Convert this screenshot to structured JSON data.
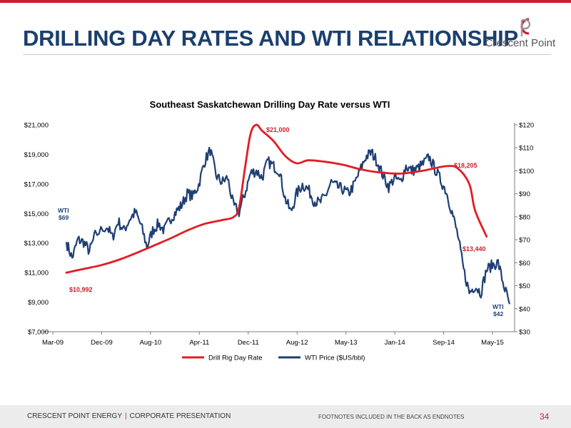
{
  "slide": {
    "title": "DRILLING DAY RATES AND WTI RELATIONSHIP",
    "logo_text": "Crescent Point",
    "brand_color": "#cc1f2f",
    "title_color": "#1b3f6e"
  },
  "footer": {
    "company": "CRESCENT POINT ENERGY",
    "separator": "|",
    "presentation": "CORPORATE PRESENTATION",
    "footnote": "FOOTNOTES INCLUDED IN THE BACK AS ENDNOTES",
    "page_number": "34"
  },
  "chart_data": {
    "type": "line",
    "title": "Southeast Saskatchewan Drilling Day Rate versus WTI",
    "x_ticks": [
      "Mar-09",
      "Dec-09",
      "Aug-10",
      "Apr-11",
      "Dec-11",
      "Aug-12",
      "May-13",
      "Jan-14",
      "Sep-14",
      "May-15"
    ],
    "y_left": {
      "min": 7000,
      "max": 21000,
      "ticks": [
        "$7,000",
        "$9,000",
        "$11,000",
        "$13,000",
        "$15,000",
        "$17,000",
        "$19,000",
        "$21,000"
      ]
    },
    "y_right": {
      "min": 30,
      "max": 120,
      "ticks": [
        "$30",
        "$40",
        "$50",
        "$60",
        "$70",
        "$80",
        "$90",
        "$100",
        "$110",
        "$120"
      ]
    },
    "legend_position": "bottom",
    "grid": false,
    "series": [
      {
        "name": "Drill Rig Day Rate",
        "color": "#e31b23",
        "axis": "left",
        "points": [
          [
            "2009-03",
            10992
          ],
          [
            "2009-06",
            11250
          ],
          [
            "2009-09",
            11500
          ],
          [
            "2009-12",
            11850
          ],
          [
            "2010-03",
            12300
          ],
          [
            "2010-06",
            12800
          ],
          [
            "2010-09",
            13300
          ],
          [
            "2010-12",
            13850
          ],
          [
            "2011-03",
            14300
          ],
          [
            "2011-06",
            14550
          ],
          [
            "2011-08",
            14750
          ],
          [
            "2011-09",
            15400
          ],
          [
            "2011-10",
            18000
          ],
          [
            "2011-11",
            20400
          ],
          [
            "2011-12",
            21000
          ],
          [
            "2012-01",
            20600
          ],
          [
            "2012-03",
            19900
          ],
          [
            "2012-05",
            18900
          ],
          [
            "2012-07",
            18400
          ],
          [
            "2012-09",
            18600
          ],
          [
            "2012-12",
            18500
          ],
          [
            "2013-03",
            18300
          ],
          [
            "2013-06",
            18000
          ],
          [
            "2013-09",
            17800
          ],
          [
            "2014-01",
            17700
          ],
          [
            "2014-05",
            17900
          ],
          [
            "2014-09",
            18205
          ],
          [
            "2014-11",
            18050
          ],
          [
            "2015-01",
            17000
          ],
          [
            "2015-02",
            15200
          ],
          [
            "2015-04",
            13440
          ]
        ]
      },
      {
        "name": "WTI Price ($US/bbl)",
        "color": "#1f3f73",
        "axis": "right",
        "points": [
          [
            "2009-03",
            69
          ],
          [
            "2009-04",
            62
          ],
          [
            "2009-05",
            70
          ],
          [
            "2009-06",
            69
          ],
          [
            "2009-07",
            65
          ],
          [
            "2009-08",
            72
          ],
          [
            "2009-10",
            76
          ],
          [
            "2009-11",
            71
          ],
          [
            "2009-12",
            78
          ],
          [
            "2010-01",
            74
          ],
          [
            "2010-02",
            79
          ],
          [
            "2010-03",
            82
          ],
          [
            "2010-04",
            76
          ],
          [
            "2010-05",
            67
          ],
          [
            "2010-06",
            74
          ],
          [
            "2010-07",
            77
          ],
          [
            "2010-08",
            74
          ],
          [
            "2010-09",
            79
          ],
          [
            "2010-10",
            82
          ],
          [
            "2010-11",
            85
          ],
          [
            "2010-12",
            90
          ],
          [
            "2011-01",
            89
          ],
          [
            "2011-02",
            94
          ],
          [
            "2011-03",
            104
          ],
          [
            "2011-04",
            109
          ],
          [
            "2011-05",
            98
          ],
          [
            "2011-06",
            95
          ],
          [
            "2011-07",
            97
          ],
          [
            "2011-08",
            85
          ],
          [
            "2011-09",
            82
          ],
          [
            "2011-10",
            90
          ],
          [
            "2011-11",
            99
          ],
          [
            "2011-12",
            100
          ],
          [
            "2012-01",
            97
          ],
          [
            "2012-02",
            104
          ],
          [
            "2012-03",
            102
          ],
          [
            "2012-04",
            100
          ],
          [
            "2012-05",
            88
          ],
          [
            "2012-06",
            82
          ],
          [
            "2012-07",
            90
          ],
          [
            "2012-08",
            94
          ],
          [
            "2012-09",
            92
          ],
          [
            "2012-10",
            87
          ],
          [
            "2012-11",
            86
          ],
          [
            "2012-12",
            89
          ],
          [
            "2013-01",
            95
          ],
          [
            "2013-02",
            93
          ],
          [
            "2013-03",
            92
          ],
          [
            "2013-04",
            90
          ],
          [
            "2013-05",
            94
          ],
          [
            "2013-06",
            100
          ],
          [
            "2013-07",
            106
          ],
          [
            "2013-08",
            108
          ],
          [
            "2013-09",
            104
          ],
          [
            "2013-10",
            98
          ],
          [
            "2013-11",
            93
          ],
          [
            "2013-12",
            97
          ],
          [
            "2014-01",
            95
          ],
          [
            "2014-02",
            102
          ],
          [
            "2014-03",
            100
          ],
          [
            "2014-04",
            101
          ],
          [
            "2014-05",
            103
          ],
          [
            "2014-06",
            106
          ],
          [
            "2014-07",
            101
          ],
          [
            "2014-08",
            96
          ],
          [
            "2014-09",
            91
          ],
          [
            "2014-10",
            82
          ],
          [
            "2014-11",
            72
          ],
          [
            "2014-12",
            57
          ],
          [
            "2015-01",
            47
          ],
          [
            "2015-02",
            50
          ],
          [
            "2015-03",
            47
          ],
          [
            "2015-04",
            57
          ],
          [
            "2015-05",
            59
          ],
          [
            "2015-06",
            60
          ],
          [
            "2015-07",
            50
          ],
          [
            "2015-08",
            42
          ]
        ]
      }
    ],
    "annotations": [
      {
        "text": "$10,992",
        "color": "#cc1f2f"
      },
      {
        "text": "$21,000",
        "color": "#cc1f2f"
      },
      {
        "text": "$18,205",
        "color": "#cc1f2f"
      },
      {
        "text": "$13,440",
        "color": "#cc1f2f"
      },
      {
        "line1": "WTI",
        "line2": "$69",
        "color": "#1f3f73"
      },
      {
        "line1": "WTI",
        "line2": "$42",
        "color": "#1f3f73"
      }
    ]
  }
}
